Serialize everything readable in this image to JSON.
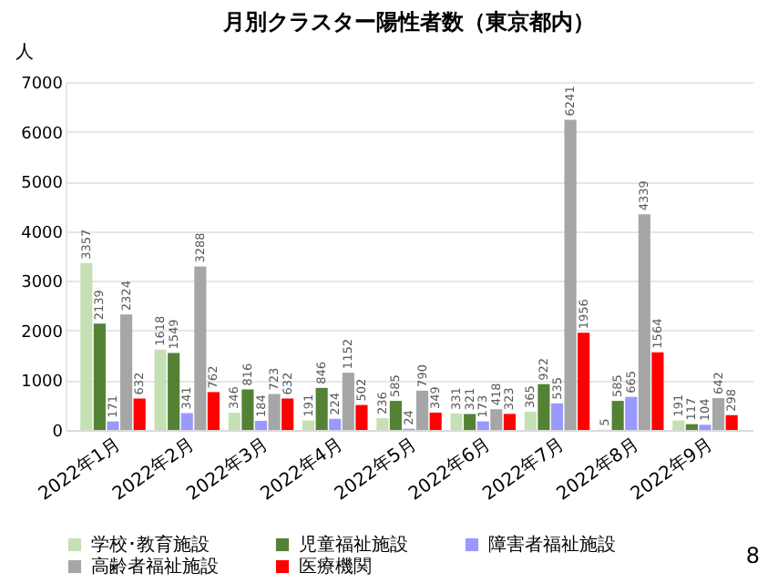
{
  "chart_data": {
    "type": "bar",
    "title": "月別クラスター陽性者数（東京都内）",
    "ylabel": "人",
    "categories": [
      "2022年1月",
      "2022年2月",
      "2022年3月",
      "2022年4月",
      "2022年5月",
      "2022年6月",
      "2022年7月",
      "2022年8月",
      "2022年9月"
    ],
    "series": [
      {
        "name": "学校･教育施設",
        "color": "#c5e0b4",
        "values": [
          3357,
          1618,
          346,
          191,
          236,
          331,
          365,
          5,
          191
        ]
      },
      {
        "name": "児童福祉施設",
        "color": "#548235",
        "values": [
          2139,
          1549,
          816,
          846,
          585,
          321,
          922,
          585,
          117
        ]
      },
      {
        "name": "障害者福祉施設",
        "color": "#9999ff",
        "values": [
          171,
          341,
          184,
          224,
          24,
          173,
          535,
          665,
          104
        ]
      },
      {
        "name": "高齢者福祉施設",
        "color": "#a6a6a6",
        "values": [
          2324,
          3288,
          723,
          1152,
          790,
          418,
          6241,
          4339,
          642
        ]
      },
      {
        "name": "医療機関",
        "color": "#ff0000",
        "values": [
          632,
          762,
          632,
          502,
          349,
          323,
          1956,
          1564,
          298
        ]
      }
    ],
    "ylim": [
      0,
      7000
    ],
    "yticks": [
      0,
      1000,
      2000,
      3000,
      4000,
      5000,
      6000,
      7000
    ],
    "grid": "y",
    "legend": "bottom",
    "data_labels": true,
    "annotations": [
      "8"
    ]
  }
}
